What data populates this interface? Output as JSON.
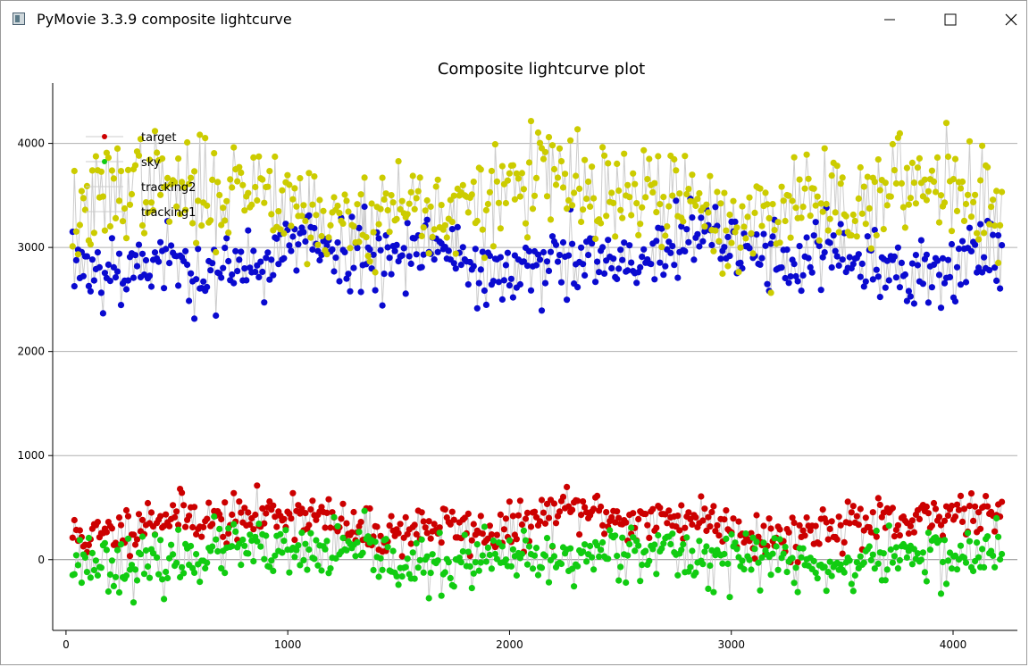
{
  "window": {
    "title": "PyMovie 3.3.9 composite lightcurve",
    "icon": "app-window-icon",
    "controls": [
      "minimize-icon",
      "maximize-icon",
      "close-icon"
    ]
  },
  "chart_data": {
    "type": "scatter",
    "title": "Composite lightcurve plot",
    "xlabel": "",
    "ylabel": "",
    "xlim": [
      -60,
      4290
    ],
    "ylim": [
      -680,
      4580
    ],
    "x_ticks": [
      0,
      1000,
      2000,
      3000,
      4000
    ],
    "y_ticks": [
      0,
      1000,
      2000,
      3000,
      4000
    ],
    "grid": {
      "y": true,
      "x": false
    },
    "legend_position": "top-left",
    "connecting_lines_color": "#cccccc",
    "n_points": 520,
    "x_range": [
      30,
      4220
    ],
    "series": [
      {
        "name": "target",
        "color": "#cc0000",
        "legend_color": "#cc0000",
        "legend_marker": "dot",
        "baseline": 350,
        "amplitude": 140,
        "spread": 110,
        "seed": 11
      },
      {
        "name": "sky",
        "color": "#11cc11",
        "legend_color": "#11cc11",
        "legend_marker": "dot",
        "baseline": 20,
        "amplitude": 110,
        "spread": 130,
        "seed": 23
      },
      {
        "name": "tracking2",
        "color": "#cccc00",
        "legend_color": "#cccccc",
        "legend_marker": "line",
        "baseline": 3450,
        "amplitude": 250,
        "spread": 240,
        "seed": 37
      },
      {
        "name": "tracking1",
        "color": "#0a0ad0",
        "legend_color": "#cccccc",
        "legend_marker": "line",
        "baseline": 2900,
        "amplitude": 200,
        "spread": 180,
        "seed": 53
      }
    ]
  }
}
